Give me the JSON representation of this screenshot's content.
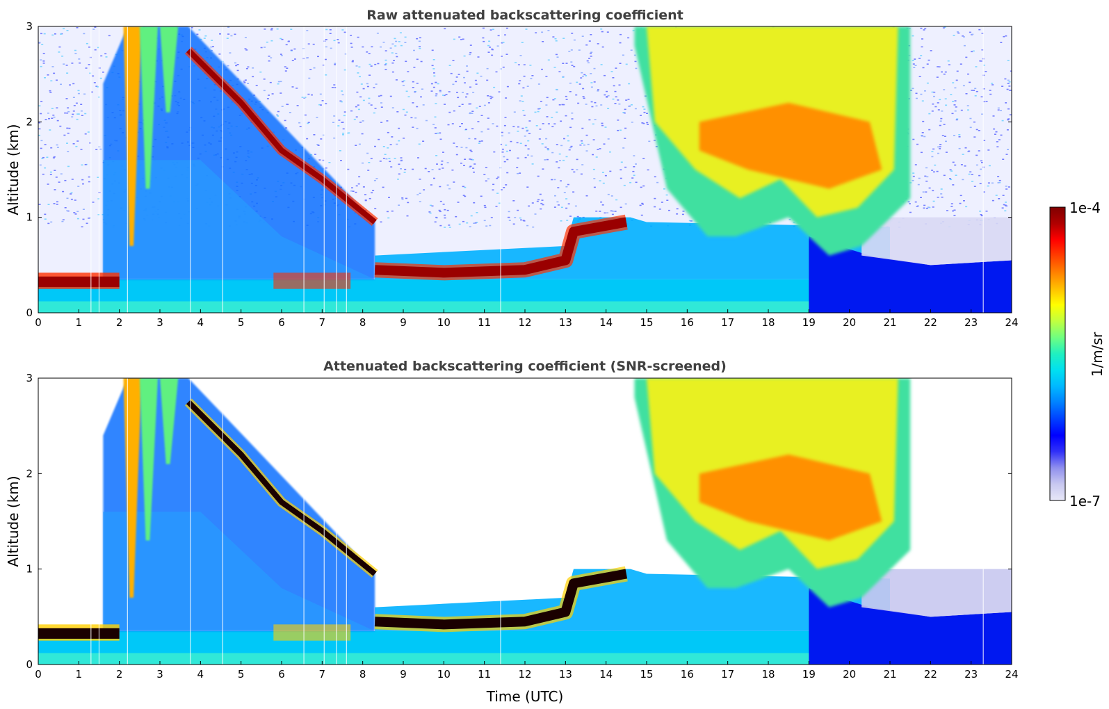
{
  "chart_data": [
    {
      "type": "heatmap",
      "title": "Raw attenuated backscattering coefficient",
      "xlabel": "",
      "ylabel": "Altitude (km)",
      "xlim": [
        0,
        24
      ],
      "ylim": [
        0,
        3
      ],
      "xticks": [
        "0",
        "1",
        "2",
        "3",
        "4",
        "5",
        "6",
        "7",
        "8",
        "9",
        "10",
        "11",
        "12",
        "13",
        "14",
        "15",
        "16",
        "17",
        "18",
        "19",
        "20",
        "21",
        "22",
        "23",
        "24"
      ],
      "yticks": [
        "0",
        "1",
        "2",
        "3"
      ],
      "screened": false
    },
    {
      "type": "heatmap",
      "title": "Attenuated backscattering coefficient (SNR-screened)",
      "xlabel": "Time (UTC)",
      "ylabel": "Altitude (km)",
      "xlim": [
        0,
        24
      ],
      "ylim": [
        0,
        3
      ],
      "xticks": [
        "0",
        "1",
        "2",
        "3",
        "4",
        "5",
        "6",
        "7",
        "8",
        "9",
        "10",
        "11",
        "12",
        "13",
        "14",
        "15",
        "16",
        "17",
        "18",
        "19",
        "20",
        "21",
        "22",
        "23",
        "24"
      ],
      "yticks": [
        "0",
        "1",
        "2",
        "3"
      ],
      "screened": true
    }
  ],
  "colorbar": {
    "label": "1/m/sr",
    "max_label": "1e-4",
    "min_label": "1e-7",
    "colormap": [
      "#e8e8f8",
      "#c8c8f0",
      "#9090ee",
      "#3030f8",
      "#0000ff",
      "#0040ff",
      "#0080ff",
      "#00b8ff",
      "#00e0f0",
      "#20f0c0",
      "#70ff80",
      "#c0ff40",
      "#ffff00",
      "#ffc000",
      "#ff8000",
      "#ff4000",
      "#ff0000",
      "#b00000",
      "#800000"
    ]
  },
  "features": {
    "layers": [
      {
        "name": "early-low-layer",
        "t": [
          0,
          2
        ],
        "h": [
          0.25,
          0.45
        ]
      },
      {
        "name": "descending-layer",
        "t": [
          3.7,
          8.3
        ],
        "h": [
          2.7,
          0.9
        ]
      },
      {
        "name": "midday-cap-layer",
        "t": [
          8.3,
          14.5
        ],
        "h": [
          0.35,
          1.0
        ]
      },
      {
        "name": "afternoon-cloud",
        "t": [
          15,
          21.5
        ],
        "h": [
          1.2,
          3.0
        ]
      }
    ]
  }
}
